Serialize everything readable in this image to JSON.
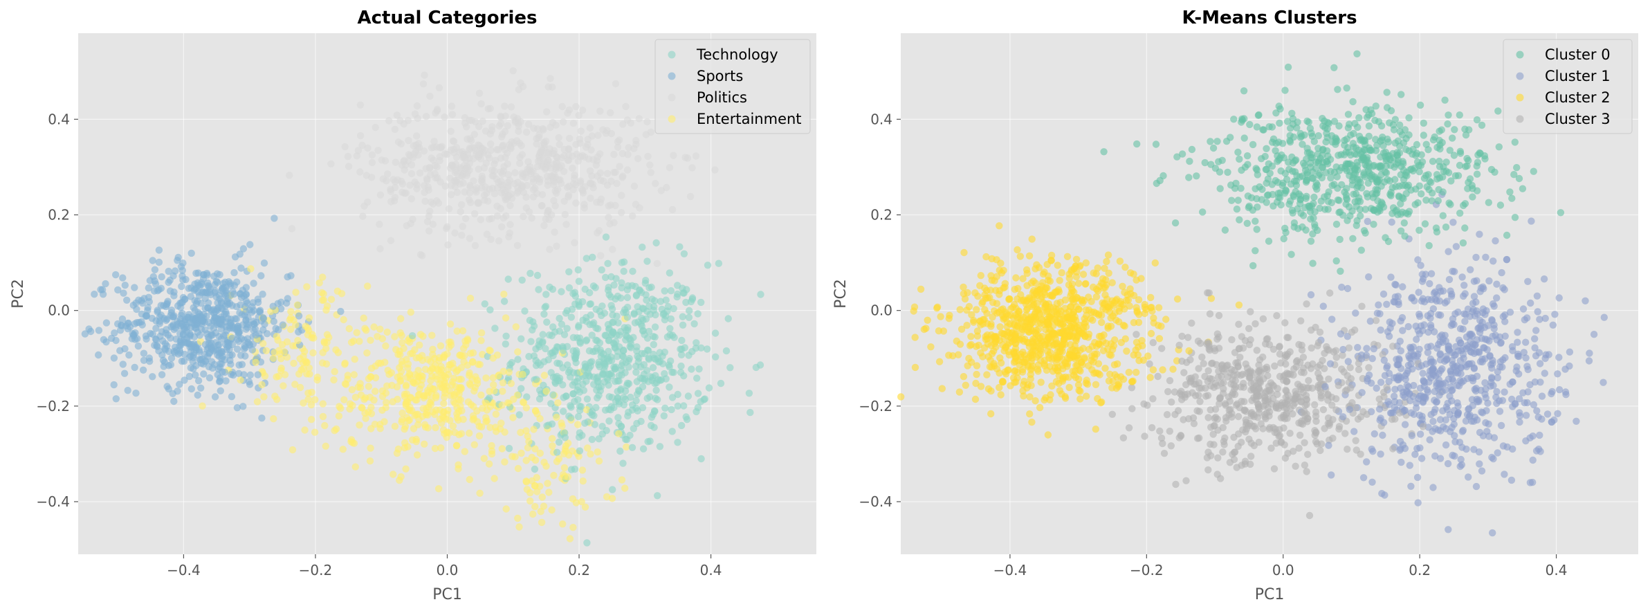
{
  "chart_data": [
    {
      "type": "scatter",
      "title": "Actual Categories",
      "xlabel": "PC1",
      "ylabel": "PC2",
      "xlim": [
        -0.56,
        0.56
      ],
      "ylim": [
        -0.51,
        0.58
      ],
      "xticks": [
        -0.4,
        -0.2,
        0.0,
        0.2,
        0.4
      ],
      "yticks": [
        -0.4,
        -0.2,
        0.0,
        0.2,
        0.4
      ],
      "grid": true,
      "legend_position": "top-right",
      "series": [
        {
          "name": "Technology",
          "color": "#8dd3c7",
          "clusters": [
            {
              "cx": 0.25,
              "cy": -0.1,
              "sx": 0.075,
              "sy": 0.1,
              "n": 650
            }
          ]
        },
        {
          "name": "Sports",
          "color": "#80b1d3",
          "clusters": [
            {
              "cx": -0.37,
              "cy": -0.03,
              "sx": 0.065,
              "sy": 0.065,
              "n": 650
            }
          ]
        },
        {
          "name": "Politics",
          "color": "#d9d9d9",
          "clusters": [
            {
              "cx": 0.09,
              "cy": 0.3,
              "sx": 0.11,
              "sy": 0.07,
              "n": 650
            }
          ]
        },
        {
          "name": "Entertainment",
          "color": "#ffed6f",
          "clusters": [
            {
              "cx": -0.02,
              "cy": -0.17,
              "sx": 0.08,
              "sy": 0.07,
              "n": 450
            },
            {
              "cx": -0.22,
              "cy": -0.08,
              "sx": 0.05,
              "sy": 0.07,
              "n": 130
            },
            {
              "cx": 0.16,
              "cy": -0.33,
              "sx": 0.05,
              "sy": 0.06,
              "n": 90
            }
          ]
        }
      ]
    },
    {
      "type": "scatter",
      "title": "K-Means Clusters",
      "xlabel": "PC1",
      "ylabel": "PC2",
      "xlim": [
        -0.56,
        0.52
      ],
      "ylim": [
        -0.51,
        0.58
      ],
      "xticks": [
        -0.4,
        -0.2,
        0.0,
        0.2,
        0.4
      ],
      "yticks": [
        -0.4,
        -0.2,
        0.0,
        0.2,
        0.4
      ],
      "grid": true,
      "legend_position": "top-right",
      "series": [
        {
          "name": "Cluster 0",
          "color": "#66c2a5",
          "clusters": [
            {
              "cx": 0.09,
              "cy": 0.29,
              "sx": 0.11,
              "sy": 0.07,
              "n": 700
            }
          ]
        },
        {
          "name": "Cluster 1",
          "color": "#8da0cb",
          "clusters": [
            {
              "cx": 0.25,
              "cy": -0.12,
              "sx": 0.075,
              "sy": 0.11,
              "n": 700
            }
          ]
        },
        {
          "name": "Cluster 2",
          "color": "#ffd92f",
          "clusters": [
            {
              "cx": -0.34,
              "cy": -0.04,
              "sx": 0.075,
              "sy": 0.07,
              "n": 900
            }
          ]
        },
        {
          "name": "Cluster 3",
          "color": "#b3b3b3",
          "clusters": [
            {
              "cx": -0.02,
              "cy": -0.18,
              "sx": 0.085,
              "sy": 0.075,
              "n": 600
            }
          ]
        }
      ]
    }
  ]
}
